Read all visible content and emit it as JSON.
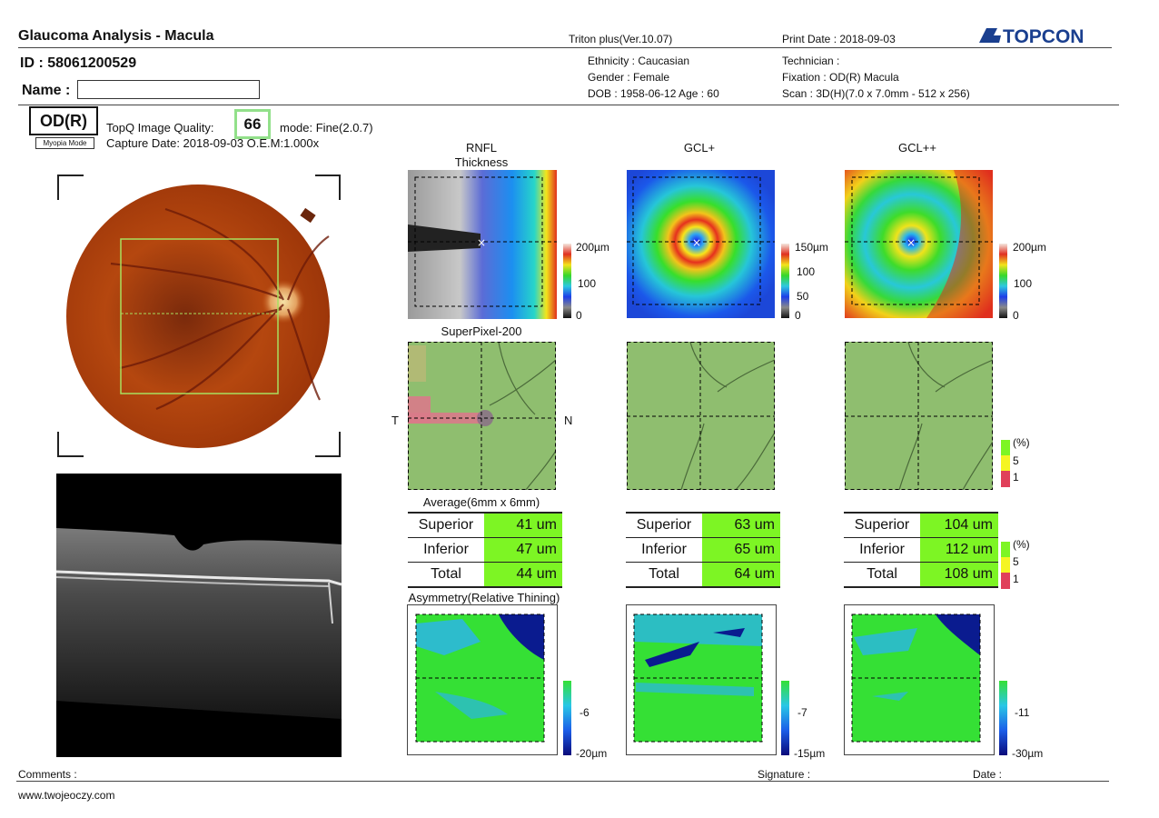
{
  "header": {
    "title": "Glaucoma Analysis - Macula",
    "device": "Triton plus(Ver.10.07)",
    "print_date": "Print Date : 2018-09-03",
    "brand": "TOPCON",
    "id_label": "ID : 58061200529",
    "name_label": "Name :",
    "name_value": "",
    "ethnicity": "Ethnicity : Caucasian",
    "gender": "Gender : Female",
    "dob": "DOB : 1958-06-12   Age : 60",
    "technician": "Technician :",
    "fixation": "Fixation : OD(R) Macula",
    "scan": "Scan : 3D(H)(7.0 x 7.0mm - 512 x 256)"
  },
  "exam": {
    "eye": "OD(R)",
    "myopia": "Myopia Mode",
    "quality_label": "TopQ Image Quality:",
    "quality_value": "66",
    "mode": "mode: Fine(2.0.7)",
    "capture": "Capture Date: 2018-09-03   O.E.M:1.000x"
  },
  "columns": [
    {
      "title": "RNFL\nThickness",
      "thickness_scale": {
        "top": "200µm",
        "mid": "100",
        "bot": "0"
      },
      "superpixel_title": "SuperPixel-200",
      "avg": [
        [
          "Superior",
          "41 um"
        ],
        [
          "Inferior",
          "47 um"
        ],
        [
          "Total",
          "44 um"
        ]
      ],
      "asym_scale": {
        "mid": "-6",
        "bot": "-20µm"
      }
    },
    {
      "title": "GCL+",
      "thickness_scale": {
        "top": "150µm",
        "mid1": "100",
        "mid2": "50",
        "bot": "0"
      },
      "avg": [
        [
          "Superior",
          "63 um"
        ],
        [
          "Inferior",
          "65 um"
        ],
        [
          "Total",
          "64 um"
        ]
      ],
      "asym_scale": {
        "mid": "-7",
        "bot": "-15µm"
      }
    },
    {
      "title": "GCL++",
      "thickness_scale": {
        "top": "200µm",
        "mid": "100",
        "bot": "0"
      },
      "avg": [
        [
          "Superior",
          "104 um"
        ],
        [
          "Inferior",
          "112 um"
        ],
        [
          "Total",
          "108 um"
        ]
      ],
      "asym_scale": {
        "mid": "-11",
        "bot": "-30µm"
      }
    }
  ],
  "superpixel_labels": {
    "t": "T",
    "n": "N"
  },
  "avg_title": "Average(6mm x 6mm)",
  "asym_title": "Asymmetry(Relative Thining)",
  "sig_legend": {
    "pct": "(%)",
    "five": "5",
    "one": "1"
  },
  "colors": {
    "normal": "#7df524",
    "borderline": "#f5f522",
    "abnormal": "#e0405a"
  },
  "footer": {
    "comments": "Comments :",
    "signature": "Signature :",
    "date": "Date :",
    "url": "www.twojeoczy.com"
  }
}
